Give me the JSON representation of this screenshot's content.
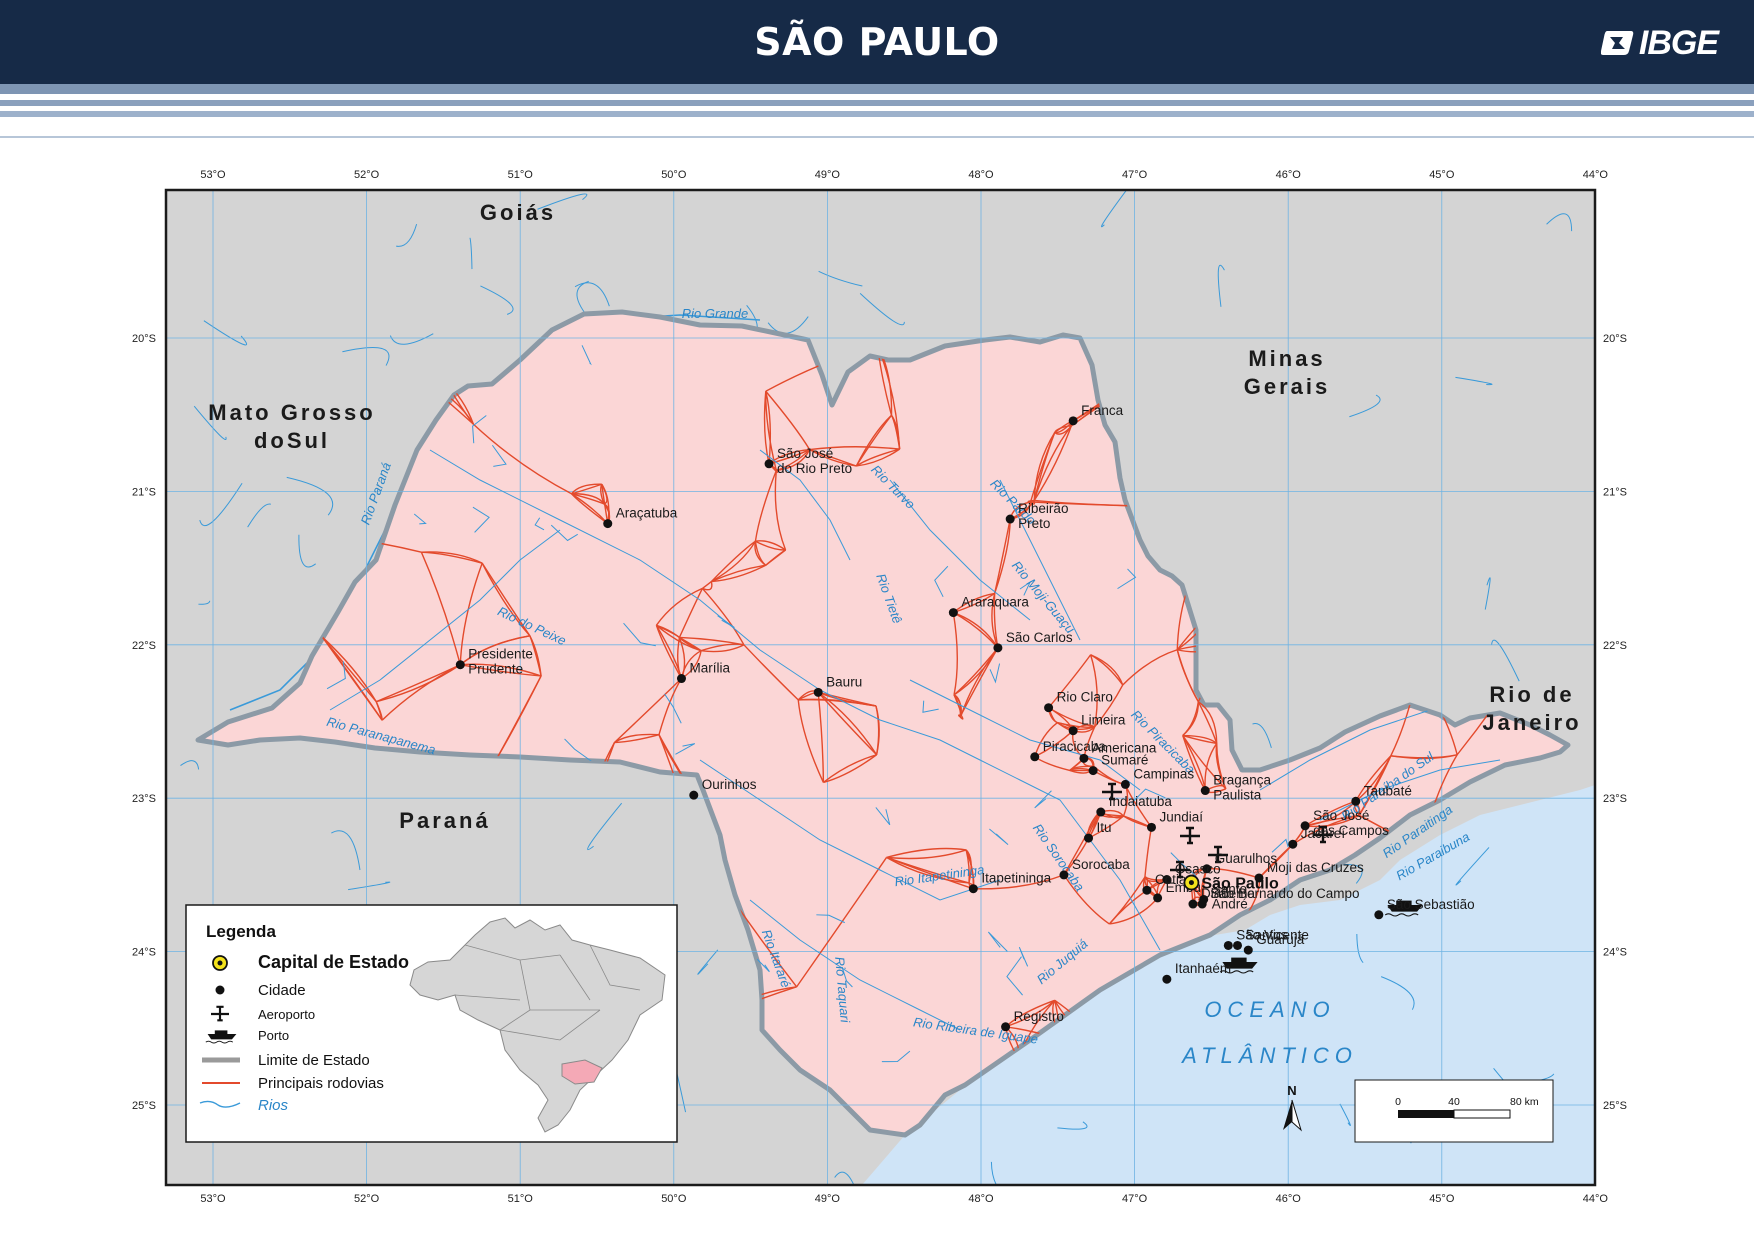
{
  "header": {
    "title": "SÃO PAULO",
    "logo": "IBGE"
  },
  "colors": {
    "header_bg": "#162a47",
    "state_fill": "#fbd6d6",
    "neighbor_fill": "#d4d4d4",
    "ocean": "#cfe4f7",
    "road": "#e34a2c",
    "river": "#3a9ad9",
    "grid": "#6fb3e3",
    "border": "#8c9aa6"
  },
  "graticule": {
    "lon_labels": [
      "53°O",
      "52°O",
      "51°O",
      "50°O",
      "49°O",
      "48°O",
      "47°O",
      "46°O",
      "45°O",
      "44°O"
    ],
    "lat_labels": [
      "20°S",
      "21°S",
      "22°S",
      "23°S",
      "24°S",
      "25°S"
    ]
  },
  "neighbors": [
    {
      "id": "goias",
      "lines": [
        "Goiás"
      ]
    },
    {
      "id": "minas",
      "lines": [
        "Minas",
        "Gerais"
      ]
    },
    {
      "id": "ms",
      "lines": [
        "Mato Grosso",
        "doSul"
      ]
    },
    {
      "id": "parana",
      "lines": [
        "Paraná"
      ]
    },
    {
      "id": "rio",
      "lines": [
        "Rio de",
        "Janeiro"
      ]
    }
  ],
  "ocean_label": [
    "OCEANO",
    "ATLÂNTICO"
  ],
  "capital": {
    "name": "São Paulo",
    "lon": -46.63,
    "lat": -23.55
  },
  "cities": [
    {
      "name": "Franca",
      "lon": -47.4,
      "lat": -20.54
    },
    {
      "name": "São José\ndo Rio Preto",
      "lon": -49.38,
      "lat": -20.82
    },
    {
      "name": "Ribeirão\nPreto",
      "lon": -47.81,
      "lat": -21.18
    },
    {
      "name": "Araçatuba",
      "lon": -50.43,
      "lat": -21.21
    },
    {
      "name": "Araraquara",
      "lon": -48.18,
      "lat": -21.79
    },
    {
      "name": "São Carlos",
      "lon": -47.89,
      "lat": -22.02
    },
    {
      "name": "Presidente\nPrudente",
      "lon": -51.39,
      "lat": -22.13
    },
    {
      "name": "Marília",
      "lon": -49.95,
      "lat": -22.22
    },
    {
      "name": "Bauru",
      "lon": -49.06,
      "lat": -22.31
    },
    {
      "name": "Rio Claro",
      "lon": -47.56,
      "lat": -22.41
    },
    {
      "name": "Limeira",
      "lon": -47.4,
      "lat": -22.56
    },
    {
      "name": "Piracicaba",
      "lon": -47.65,
      "lat": -22.73
    },
    {
      "name": "Americana",
      "lon": -47.33,
      "lat": -22.74
    },
    {
      "name": "Sumaré",
      "lon": -47.27,
      "lat": -22.82
    },
    {
      "name": "Campinas",
      "lon": -47.06,
      "lat": -22.91
    },
    {
      "name": "Indaiatuba",
      "lon": -47.22,
      "lat": -23.09
    },
    {
      "name": "Bragança\nPaulista",
      "lon": -46.54,
      "lat": -22.95
    },
    {
      "name": "Ourinhos",
      "lon": -49.87,
      "lat": -22.98
    },
    {
      "name": "Jundiaí",
      "lon": -46.89,
      "lat": -23.19
    },
    {
      "name": "Itu",
      "lon": -47.3,
      "lat": -23.26
    },
    {
      "name": "São José\ndos Campos",
      "lon": -45.89,
      "lat": -23.18
    },
    {
      "name": "Taubaté",
      "lon": -45.56,
      "lat": -23.02
    },
    {
      "name": "Jacareí",
      "lon": -45.97,
      "lat": -23.3
    },
    {
      "name": "Guarulhos",
      "lon": -46.53,
      "lat": -23.46
    },
    {
      "name": "Osasco",
      "lon": -46.79,
      "lat": -23.53
    },
    {
      "name": "Sorocaba",
      "lon": -47.46,
      "lat": -23.5
    },
    {
      "name": "Moji das Cruzes",
      "lon": -46.19,
      "lat": -23.52
    },
    {
      "name": "Cotia",
      "lon": -46.92,
      "lat": -23.6
    },
    {
      "name": "Embu",
      "lon": -46.85,
      "lat": -23.65
    },
    {
      "name": "Itapetininga",
      "lon": -48.05,
      "lat": -23.59
    },
    {
      "name": "São Bernardo do Campo",
      "lon": -46.56,
      "lat": -23.69
    },
    {
      "name": "Diadema",
      "lon": -46.62,
      "lat": -23.69
    },
    {
      "name": "Santo\nAndré",
      "lon": -46.55,
      "lat": -23.66
    },
    {
      "name": "São Sebastião",
      "lon": -45.41,
      "lat": -23.76
    },
    {
      "name": "Santos",
      "lon": -46.33,
      "lat": -23.96
    },
    {
      "name": "São Vicente",
      "lon": -46.39,
      "lat": -23.96
    },
    {
      "name": "Guarujá",
      "lon": -46.26,
      "lat": -23.99
    },
    {
      "name": "Itanhaém",
      "lon": -46.79,
      "lat": -24.18
    },
    {
      "name": "Registro",
      "lon": -47.84,
      "lat": -24.49
    }
  ],
  "rivers": [
    {
      "name": "Rio Grande"
    },
    {
      "name": "Rio Paraná"
    },
    {
      "name": "Rio do Peixe"
    },
    {
      "name": "Rio Paranapanema"
    },
    {
      "name": "Rio Turvo"
    },
    {
      "name": "Rio Pardo"
    },
    {
      "name": "Rio Moji-Guaçu"
    },
    {
      "name": "Rio Tietê"
    },
    {
      "name": "Rio Piracicaba"
    },
    {
      "name": "Rio Sorocaba"
    },
    {
      "name": "Rio Itapetininga"
    },
    {
      "name": "Rio Itararé"
    },
    {
      "name": "Rio Taquari"
    },
    {
      "name": "Rio Juquiá"
    },
    {
      "name": "Rio Ribeira de Iguape"
    },
    {
      "name": "Rio Paraíba do Sul"
    },
    {
      "name": "Rio Paraitinga"
    },
    {
      "name": "Rio Paraibuna"
    }
  ],
  "legend": {
    "title": "Legenda",
    "items": [
      {
        "symbol": "capital",
        "label": "Capital de Estado"
      },
      {
        "symbol": "city",
        "label": "Cidade"
      },
      {
        "symbol": "airport",
        "label": "Aeroporto"
      },
      {
        "symbol": "port",
        "label": "Porto"
      },
      {
        "symbol": "state-limit",
        "label": "Limite de Estado"
      },
      {
        "symbol": "road",
        "label": "Principais rodovias"
      },
      {
        "symbol": "river",
        "label": "Rios"
      }
    ]
  },
  "scale": {
    "ticks": [
      "0",
      "40",
      "80 km"
    ]
  },
  "north": "N"
}
